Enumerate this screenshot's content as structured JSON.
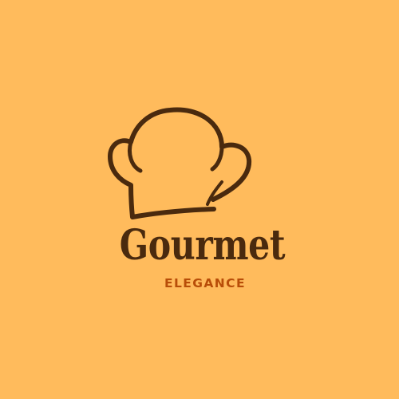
{
  "logo": {
    "icon": "chef-hat-icon",
    "brand_name": "Gourmet",
    "tagline": "ELEGANCE"
  },
  "colors": {
    "background": "#FFBB5C",
    "primary": "#4A2A0E",
    "accent": "#B84D08"
  }
}
